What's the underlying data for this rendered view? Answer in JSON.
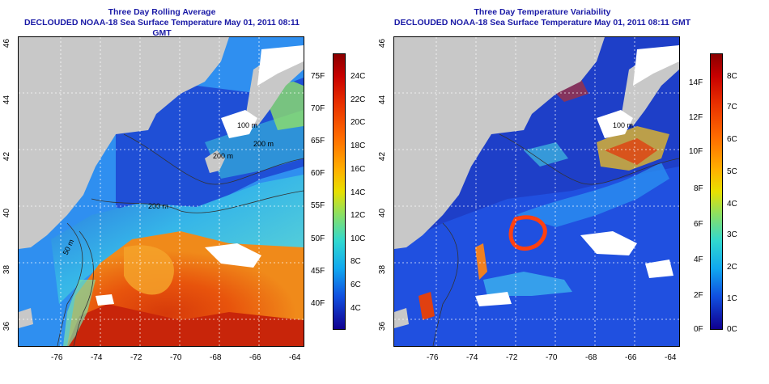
{
  "panels": [
    {
      "id": "left",
      "title_line1": "Three Day Rolling Average",
      "title_line2": "DECLOUDED NOAA-18 Sea Surface Temperature May 01, 2011 08:11 GMT",
      "x_ticks": [
        "-76",
        "-74",
        "-72",
        "-70",
        "-68",
        "-66",
        "-64"
      ],
      "y_ticks": [
        "46",
        "44",
        "42",
        "40",
        "38",
        "36"
      ],
      "contour_labels": [
        "100 m",
        "200 m",
        "200 m",
        "50 m",
        "200 m"
      ],
      "colorbar": {
        "fahrenheit": [
          "75F",
          "70F",
          "65F",
          "60F",
          "55F",
          "50F",
          "45F",
          "40F"
        ],
        "celsius": [
          "24C",
          "22C",
          "20C",
          "18C",
          "16C",
          "14C",
          "12C",
          "10C",
          "8C",
          "6C",
          "4C"
        ]
      }
    },
    {
      "id": "right",
      "title_line1": "Three Day Temperature Variability",
      "title_line2": "DECLOUDED NOAA-18 Sea Surface Temperature May 01, 2011 08:11 GMT",
      "x_ticks": [
        "-76",
        "-74",
        "-72",
        "-70",
        "-68",
        "-66",
        "-64"
      ],
      "y_ticks": [
        "46",
        "44",
        "42",
        "40",
        "38",
        "36"
      ],
      "contour_labels": [
        "100 m"
      ],
      "colorbar": {
        "fahrenheit": [
          "14F",
          "12F",
          "10F",
          "8F",
          "6F",
          "4F",
          "2F",
          "0F"
        ],
        "celsius": [
          "8C",
          "7C",
          "6C",
          "5C",
          "4C",
          "3C",
          "2C",
          "1C",
          "0C"
        ]
      }
    }
  ],
  "colors": {
    "land": "#c8c8c8",
    "ocean_deep_blue": "#1e3fc8",
    "title_blue": "#1a1aa6"
  }
}
